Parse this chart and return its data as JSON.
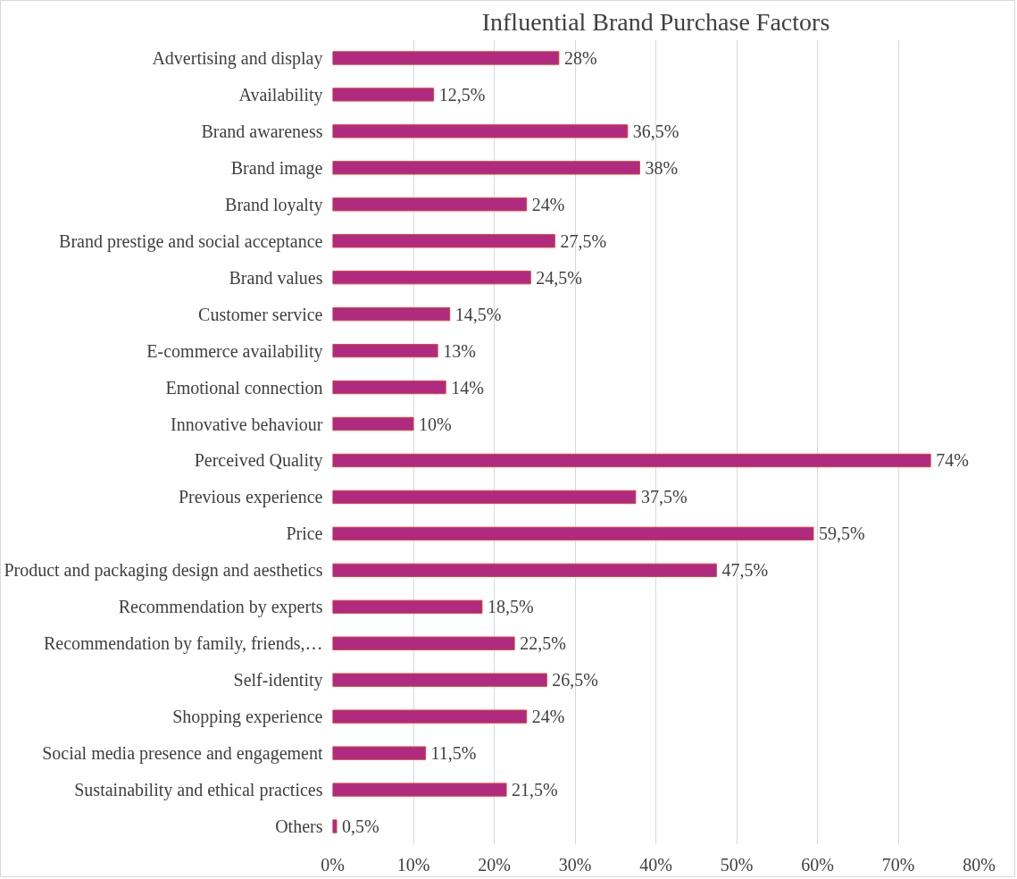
{
  "chart_data": {
    "type": "bar",
    "orientation": "horizontal",
    "title": "Influential Brand Purchase Factors",
    "categories": [
      "Advertising and display",
      "Availability",
      "Brand awareness",
      "Brand image",
      "Brand loyalty",
      "Brand prestige and social acceptance",
      "Brand values",
      "Customer service",
      "E-commerce availability",
      "Emotional connection",
      "Innovative behaviour",
      "Perceived Quality",
      "Previous experience",
      "Price",
      "Product and packaging design and aesthetics",
      "Recommendation by experts",
      "Recommendation by family, friends,…",
      "Self-identity",
      "Shopping experience",
      "Social media presence and engagement",
      "Sustainability and ethical practices",
      "Others"
    ],
    "values": [
      28,
      12.5,
      36.5,
      38,
      24,
      27.5,
      24.5,
      14.5,
      13,
      14,
      10,
      74,
      37.5,
      59.5,
      47.5,
      18.5,
      22.5,
      26.5,
      24,
      11.5,
      21.5,
      0.5
    ],
    "value_labels": [
      "28%",
      "12,5%",
      "36,5%",
      "38%",
      "24%",
      "27,5%",
      "24,5%",
      "14,5%",
      "13%",
      "14%",
      "10%",
      "74%",
      "37,5%",
      "59,5%",
      "47,5%",
      "18,5%",
      "22,5%",
      "26,5%",
      "24%",
      "11,5%",
      "21,5%",
      "0,5%"
    ],
    "color": "#b02a7f",
    "xlim": [
      0,
      80
    ],
    "xticks": [
      {
        "value": 0,
        "label": "0%"
      },
      {
        "value": 10,
        "label": "10%"
      },
      {
        "value": 20,
        "label": "20%"
      },
      {
        "value": 30,
        "label": "30%"
      },
      {
        "value": 40,
        "label": "40%"
      },
      {
        "value": 50,
        "label": "50%"
      },
      {
        "value": 60,
        "label": "60%"
      },
      {
        "value": 70,
        "label": "70%"
      },
      {
        "value": 80,
        "label": "80%"
      }
    ],
    "grid": "x"
  }
}
